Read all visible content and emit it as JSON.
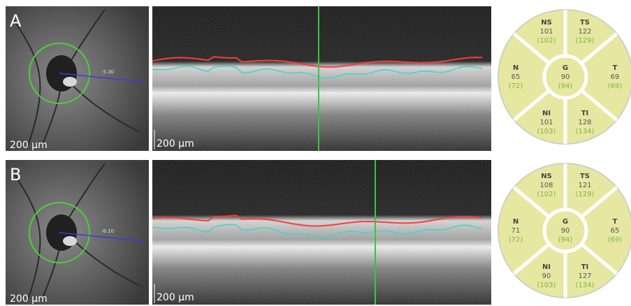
{
  "panels": [
    {
      "label": "A",
      "fundus_scale": "200 µm",
      "fundus_reading": "-5.30",
      "oct_scale": "200 µm",
      "sectors": [
        {
          "name": "NS",
          "value": "101",
          "normal": "(102)"
        },
        {
          "name": "TS",
          "value": "122",
          "normal": "(129)"
        },
        {
          "name": "N",
          "value": "65",
          "normal": "(72)"
        },
        {
          "name": "G",
          "value": "90",
          "normal": "(94)"
        },
        {
          "name": "T",
          "value": "69",
          "normal": "(69)"
        },
        {
          "name": "NI",
          "value": "101",
          "normal": "(103)"
        },
        {
          "name": "TI",
          "value": "128",
          "normal": "(134)"
        }
      ]
    },
    {
      "label": "B",
      "fundus_scale": "200 µm",
      "fundus_reading": "-6.10",
      "oct_scale": "200 µm",
      "sectors": [
        {
          "name": "NS",
          "value": "108",
          "normal": "(102)"
        },
        {
          "name": "TS",
          "value": "121",
          "normal": "(129)"
        },
        {
          "name": "N",
          "value": "71",
          "normal": "(72)"
        },
        {
          "name": "G",
          "value": "90",
          "normal": "(94)"
        },
        {
          "name": "T",
          "value": "65",
          "normal": "(69)"
        },
        {
          "name": "NI",
          "value": "90",
          "normal": "(103)"
        },
        {
          "name": "TI",
          "value": "127",
          "normal": "(134)"
        }
      ]
    }
  ]
}
